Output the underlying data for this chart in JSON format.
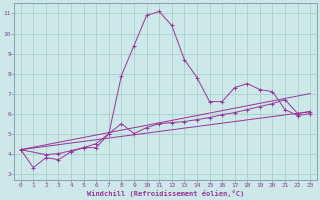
{
  "xlabel": "Windchill (Refroidissement éolien,°C)",
  "bg_color": "#cce8e8",
  "grid_color": "#aacece",
  "line_color": "#993399",
  "spine_color": "#7799aa",
  "xlim": [
    -0.5,
    23.5
  ],
  "ylim": [
    2.7,
    11.5
  ],
  "xticks": [
    0,
    1,
    2,
    3,
    4,
    5,
    6,
    7,
    8,
    9,
    10,
    11,
    12,
    13,
    14,
    15,
    16,
    17,
    18,
    19,
    20,
    21,
    22,
    23
  ],
  "yticks": [
    3,
    4,
    5,
    6,
    7,
    8,
    9,
    10,
    11
  ],
  "curves": [
    {
      "x": [
        0,
        1,
        2,
        3,
        4,
        5,
        6,
        7,
        8,
        9,
        10,
        11,
        12,
        13,
        14,
        15,
        16,
        17,
        18,
        19,
        20,
        21,
        22,
        23
      ],
      "y": [
        4.2,
        3.3,
        3.8,
        3.7,
        4.1,
        4.3,
        4.3,
        5.0,
        7.9,
        9.4,
        10.9,
        11.1,
        10.4,
        8.7,
        7.8,
        6.6,
        6.6,
        7.3,
        7.5,
        7.2,
        7.1,
        6.2,
        5.9,
        6.0
      ],
      "marker": "+"
    },
    {
      "x": [
        0,
        2,
        3,
        4,
        5,
        6,
        7,
        8,
        9,
        10,
        11,
        12,
        13,
        14,
        15,
        16,
        17,
        18,
        19,
        20,
        21,
        22,
        23
      ],
      "y": [
        4.2,
        3.95,
        4.0,
        4.15,
        4.3,
        4.5,
        5.0,
        5.5,
        5.0,
        5.3,
        5.5,
        5.55,
        5.6,
        5.7,
        5.8,
        5.95,
        6.05,
        6.2,
        6.35,
        6.5,
        6.7,
        6.0,
        6.1
      ],
      "marker": "+"
    },
    {
      "x": [
        0,
        23
      ],
      "y": [
        4.2,
        7.0
      ],
      "marker": null
    },
    {
      "x": [
        0,
        23
      ],
      "y": [
        4.2,
        6.1
      ],
      "marker": null
    }
  ]
}
